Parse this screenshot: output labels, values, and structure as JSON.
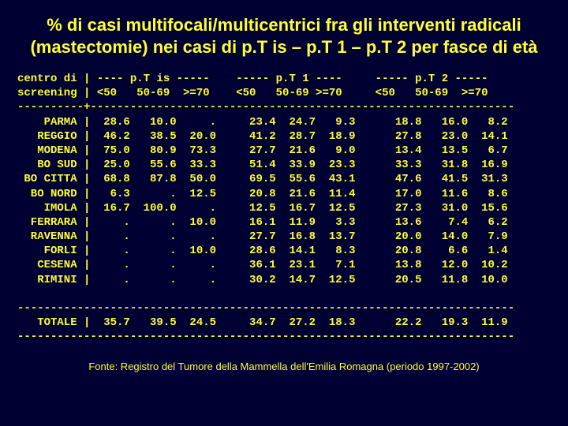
{
  "colors": {
    "background": "#000033",
    "text": "#ffff33"
  },
  "title": "% di casi multifocali/multicentrici fra gli interventi radicali (mastectomie) nei casi di p.T is – p.T 1 – p.T 2 per fasce di età",
  "header_line1": "centro di | ---- p.T is -----    ----- p.T 1 ----     ----- p.T 2 -----",
  "header_line2": "screening | <50   50-69  >=70    <50   50-69 >=70     <50   50-69  >=70",
  "divider": "----------+----------------------------------------------------------------",
  "divider2": "---------------------------------------------------------------------------",
  "rows": [
    {
      "label": "PARMA",
      "d": [
        "28.6",
        "10.0",
        ".",
        "23.4",
        "24.7",
        "9.3",
        "18.8",
        "16.0",
        "8.2"
      ]
    },
    {
      "label": "REGGIO",
      "d": [
        "46.2",
        "38.5",
        "20.0",
        "41.2",
        "28.7",
        "18.9",
        "27.8",
        "23.0",
        "14.1"
      ]
    },
    {
      "label": "MODENA",
      "d": [
        "75.0",
        "80.9",
        "73.3",
        "27.7",
        "21.6",
        "9.0",
        "13.4",
        "13.5",
        "6.7"
      ]
    },
    {
      "label": "BO SUD",
      "d": [
        "25.0",
        "55.6",
        "33.3",
        "51.4",
        "33.9",
        "23.3",
        "33.3",
        "31.8",
        "16.9"
      ]
    },
    {
      "label": "BO CITTA",
      "d": [
        "68.8",
        "87.8",
        "50.0",
        "69.5",
        "55.6",
        "43.1",
        "47.6",
        "41.5",
        "31.3"
      ]
    },
    {
      "label": "BO NORD",
      "d": [
        "6.3",
        ".",
        "12.5",
        "20.8",
        "21.6",
        "11.4",
        "17.0",
        "11.6",
        "8.6"
      ]
    },
    {
      "label": "IMOLA",
      "d": [
        "16.7",
        "100.0",
        ".",
        "12.5",
        "16.7",
        "12.5",
        "27.3",
        "31.0",
        "15.6"
      ]
    },
    {
      "label": "FERRARA",
      "d": [
        ".",
        ".",
        "10.0",
        "16.1",
        "11.9",
        "3.3",
        "13.6",
        "7.4",
        "6.2"
      ]
    },
    {
      "label": "RAVENNA",
      "d": [
        ".",
        ".",
        ".",
        "27.7",
        "16.8",
        "13.7",
        "20.0",
        "14.0",
        "7.9"
      ]
    },
    {
      "label": "FORLI",
      "d": [
        ".",
        ".",
        "10.0",
        "28.6",
        "14.1",
        "8.3",
        "20.8",
        "6.6",
        "1.4"
      ]
    },
    {
      "label": "CESENA",
      "d": [
        ".",
        ".",
        ".",
        "36.1",
        "23.1",
        "7.1",
        "13.8",
        "12.0",
        "10.2"
      ]
    },
    {
      "label": "RIMINI",
      "d": [
        ".",
        ".",
        ".",
        "30.2",
        "14.7",
        "12.5",
        "20.5",
        "11.8",
        "10.0"
      ]
    }
  ],
  "total": {
    "label": "TOTALE",
    "d": [
      "35.7",
      "39.5",
      "24.5",
      "34.7",
      "27.2",
      "18.3",
      "22.2",
      "19.3",
      "11.9"
    ]
  },
  "footer": "Fonte: Registro del Tumore della Mammella dell'Emilia Romagna (periodo 1997-2002)"
}
